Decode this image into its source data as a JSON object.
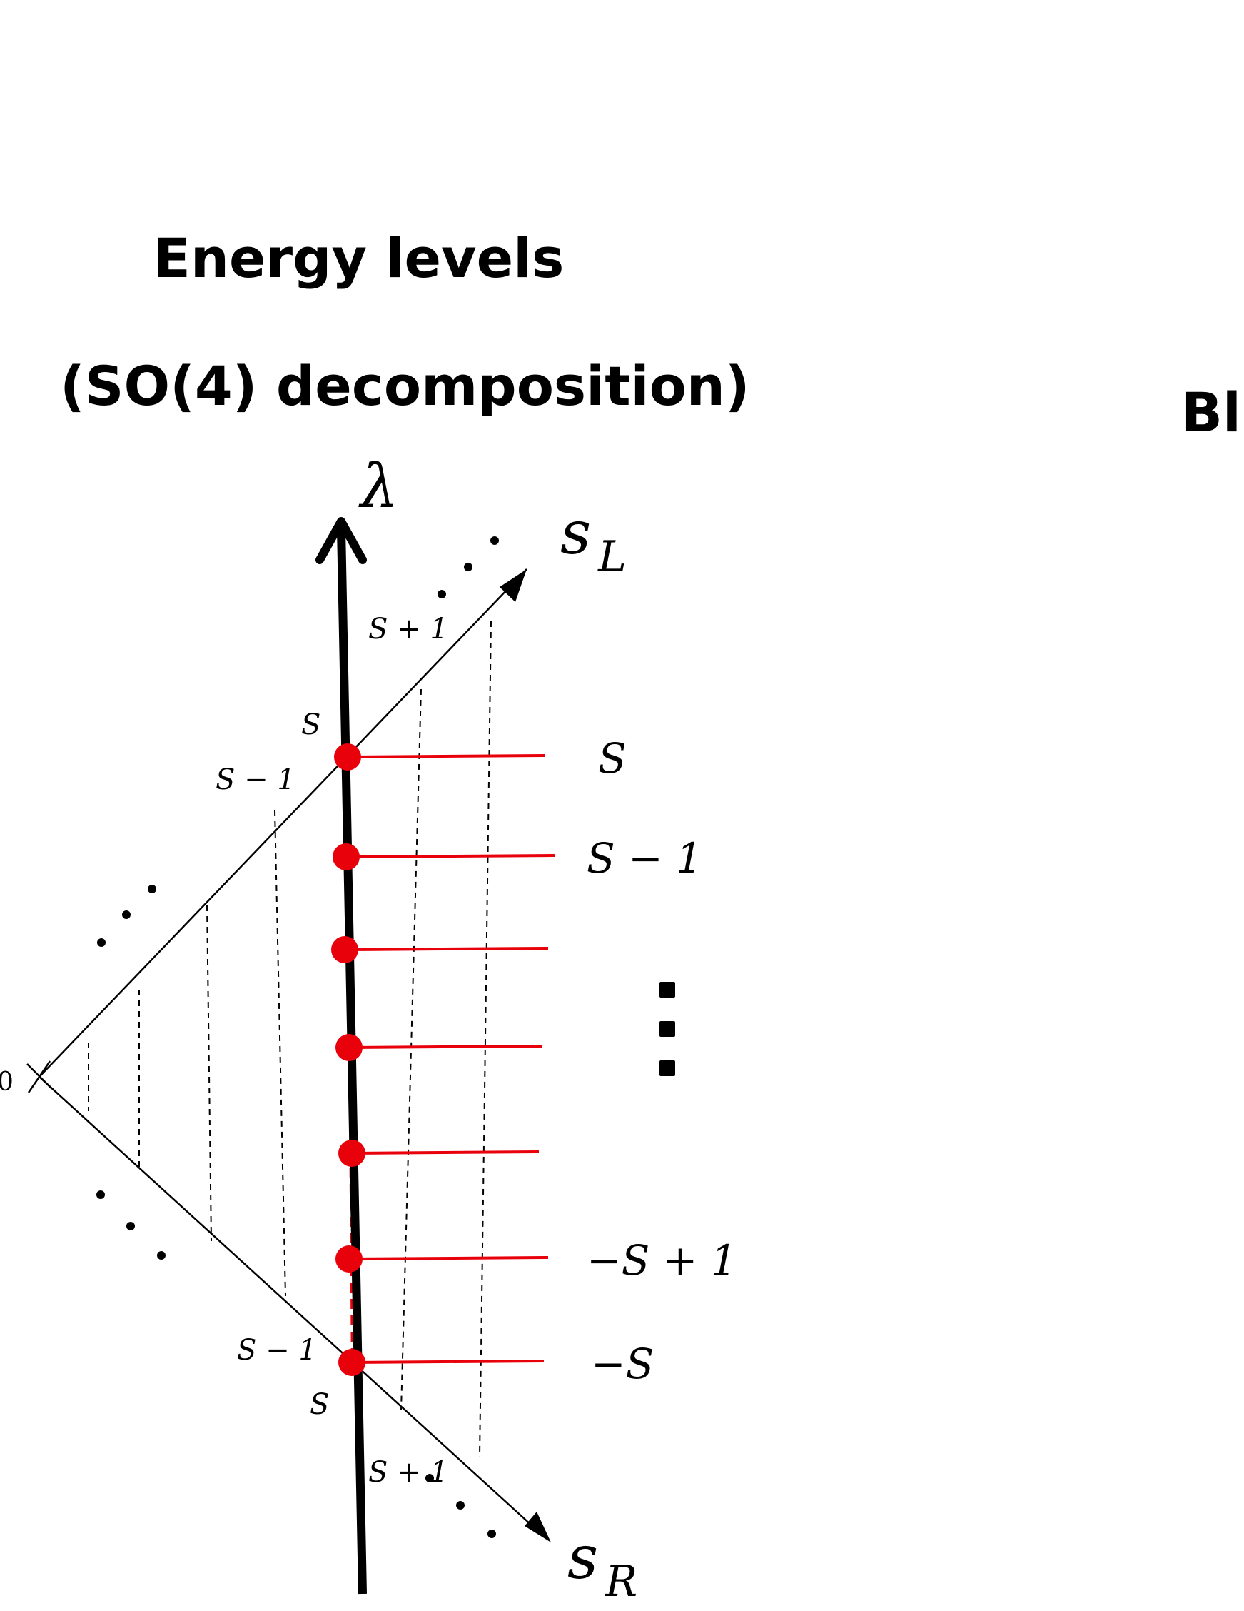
{
  "titles": {
    "line1": "Energy levels",
    "line2": "(SO(4) decomposition)",
    "right_cut": "Bl"
  },
  "axes": {
    "lambda": "λ",
    "sL": "s",
    "sL_sub": "L",
    "sR": "s",
    "sR_sub": "R",
    "origin": "0"
  },
  "tick_labels": {
    "upper_S": "S",
    "upper_S_minus_1": "S − 1",
    "upper_S_plus_1": "S + 1",
    "lower_S": "S",
    "lower_S_minus_1": "S − 1",
    "lower_S_plus_1": "S + 1"
  },
  "levels": {
    "labels": [
      "S",
      "S − 1",
      "",
      "",
      "",
      "−S + 1",
      "−S"
    ]
  },
  "colors": {
    "level": "#e8000b",
    "axis": "#000000"
  }
}
